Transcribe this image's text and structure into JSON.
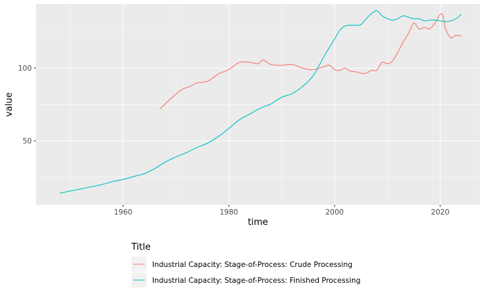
{
  "chart_data": {
    "type": "line",
    "xlabel": "time",
    "ylabel": "value",
    "xlim": [
      1943.5,
      2027.5
    ],
    "ylim": [
      6,
      144
    ],
    "x_ticks": [
      1960,
      1980,
      2000,
      2020
    ],
    "y_ticks": [
      50,
      100
    ],
    "grid": true,
    "legend": {
      "title": "Title",
      "placement": "bottom"
    },
    "series": [
      {
        "name": "Industrial Capacity: Stage-of-Process: Crude Processing",
        "color": "#F8766D",
        "x": [
          1967,
          1969,
          1971,
          1973,
          1974,
          1976,
          1978,
          1980,
          1982,
          1984,
          1985.5,
          1986.5,
          1988,
          1990,
          1992,
          1994,
          1996,
          1998,
          1999,
          2000,
          2001,
          2002,
          2003,
          2004,
          2005,
          2006,
          2007,
          2008,
          2009,
          2010,
          2011,
          2012,
          2013,
          2014,
          2015,
          2016,
          2017,
          2018,
          2019,
          2020,
          2020.5,
          2021,
          2022,
          2023,
          2024
        ],
        "y": [
          72,
          79,
          85,
          88,
          90,
          91,
          96,
          99,
          104,
          104,
          103,
          105.5,
          102.5,
          102,
          102.5,
          100,
          99,
          101,
          102,
          99,
          98.5,
          100,
          98,
          97.5,
          96.5,
          96.5,
          98.5,
          98.5,
          104,
          103,
          105,
          111,
          118,
          124,
          131,
          127,
          128,
          127,
          131,
          137,
          136,
          127,
          121,
          122.5,
          122
        ]
      },
      {
        "name": "Industrial Capacity: Stage-of-Process: Finished Processing",
        "color": "#00BFC4",
        "x": [
          1948,
          1950,
          1952,
          1954,
          1956,
          1958,
          1960,
          1962,
          1964,
          1966,
          1968,
          1970,
          1972,
          1974,
          1976,
          1978,
          1980,
          1982,
          1984,
          1986,
          1988,
          1990,
          1992,
          1994,
          1996,
          1998,
          2000,
          2001,
          2002,
          2003,
          2004,
          2005,
          2006,
          2007,
          2008,
          2009,
          2010,
          2011,
          2012,
          2013,
          2014,
          2015,
          2016,
          2017,
          2018,
          2019,
          2020,
          2021,
          2022,
          2023,
          2024
        ],
        "y": [
          14,
          15.5,
          17,
          18.5,
          20,
          22,
          23.5,
          25.5,
          27.5,
          31,
          35.5,
          39,
          42,
          45.5,
          48.5,
          53,
          58.5,
          64.5,
          68.5,
          72.5,
          75.5,
          80,
          82.5,
          87.5,
          95,
          108,
          120,
          126,
          129,
          129.5,
          129.5,
          130,
          134,
          137.5,
          139.5,
          136,
          134,
          133,
          134,
          136,
          135,
          134,
          134,
          132.5,
          133,
          133,
          132.5,
          132,
          132.5,
          134,
          137
        ]
      }
    ]
  }
}
